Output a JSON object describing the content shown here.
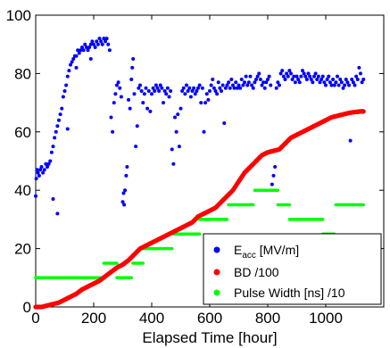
{
  "chart_data": {
    "type": "scatter",
    "xlabel": "Elapsed Time [hour]",
    "ylabel": "",
    "xlim": [
      0,
      1200
    ],
    "ylim": [
      0,
      100
    ],
    "xticks": [
      "0",
      "200",
      "400",
      "600",
      "800",
      "1000"
    ],
    "yticks": [
      "0",
      "20",
      "40",
      "60",
      "80",
      "100"
    ],
    "grid": false,
    "legend_position": "bottom-right",
    "series": [
      {
        "name": "E",
        "name_subscript": "acc",
        "name_suffix": " [MV/m]",
        "color": "#0000ff",
        "points": [
          [
            0,
            38
          ],
          [
            2,
            44
          ],
          [
            5,
            47
          ],
          [
            8,
            46
          ],
          [
            12,
            45
          ],
          [
            16,
            47
          ],
          [
            20,
            48
          ],
          [
            25,
            46
          ],
          [
            30,
            47
          ],
          [
            35,
            49
          ],
          [
            40,
            48
          ],
          [
            45,
            49
          ],
          [
            50,
            50
          ],
          [
            55,
            53
          ],
          [
            60,
            55
          ],
          [
            65,
            58
          ],
          [
            70,
            60
          ],
          [
            75,
            62
          ],
          [
            80,
            64
          ],
          [
            85,
            66
          ],
          [
            90,
            68
          ],
          [
            95,
            72
          ],
          [
            100,
            74
          ],
          [
            105,
            76
          ],
          [
            110,
            79
          ],
          [
            115,
            81
          ],
          [
            120,
            83
          ],
          [
            125,
            84
          ],
          [
            130,
            85
          ],
          [
            135,
            86
          ],
          [
            140,
            86
          ],
          [
            145,
            88
          ],
          [
            150,
            87
          ],
          [
            155,
            88
          ],
          [
            160,
            89
          ],
          [
            165,
            88
          ],
          [
            170,
            90
          ],
          [
            175,
            89
          ],
          [
            180,
            88
          ],
          [
            185,
            89
          ],
          [
            190,
            90
          ],
          [
            195,
            91
          ],
          [
            200,
            90
          ],
          [
            205,
            89
          ],
          [
            210,
            91
          ],
          [
            215,
            90
          ],
          [
            220,
            92
          ],
          [
            225,
            91
          ],
          [
            230,
            90
          ],
          [
            235,
            92
          ],
          [
            240,
            91
          ],
          [
            245,
            92
          ],
          [
            250,
            90
          ],
          [
            255,
            88
          ],
          [
            60,
            37
          ],
          [
            75,
            32
          ],
          [
            110,
            61
          ],
          [
            140,
            82
          ],
          [
            190,
            85
          ],
          [
            260,
            65
          ],
          [
            265,
            60
          ],
          [
            270,
            70
          ],
          [
            275,
            73
          ],
          [
            280,
            76
          ],
          [
            285,
            77
          ],
          [
            290,
            75
          ],
          [
            295,
            72
          ],
          [
            300,
            36
          ],
          [
            303,
            39
          ],
          [
            305,
            35
          ],
          [
            308,
            40
          ],
          [
            312,
            45
          ],
          [
            315,
            48
          ],
          [
            320,
            71
          ],
          [
            325,
            68
          ],
          [
            330,
            78
          ],
          [
            333,
            82
          ],
          [
            336,
            85
          ],
          [
            340,
            73
          ],
          [
            345,
            55
          ],
          [
            350,
            62
          ],
          [
            355,
            75
          ],
          [
            360,
            76
          ],
          [
            365,
            74
          ],
          [
            370,
            70
          ],
          [
            375,
            73
          ],
          [
            380,
            75
          ],
          [
            385,
            68
          ],
          [
            390,
            74
          ],
          [
            395,
            67
          ],
          [
            400,
            73
          ],
          [
            405,
            75
          ],
          [
            410,
            74
          ],
          [
            415,
            76
          ],
          [
            420,
            75
          ],
          [
            425,
            74
          ],
          [
            430,
            76
          ],
          [
            435,
            75
          ],
          [
            440,
            70
          ],
          [
            445,
            74
          ],
          [
            450,
            73
          ],
          [
            455,
            75
          ],
          [
            460,
            72
          ],
          [
            465,
            74
          ],
          [
            470,
            54
          ],
          [
            475,
            49
          ],
          [
            480,
            65
          ],
          [
            485,
            60
          ],
          [
            490,
            66
          ],
          [
            495,
            55
          ],
          [
            500,
            68
          ],
          [
            505,
            74
          ],
          [
            510,
            75
          ],
          [
            515,
            73
          ],
          [
            520,
            76
          ],
          [
            525,
            74
          ],
          [
            530,
            75
          ],
          [
            535,
            72
          ],
          [
            540,
            74
          ],
          [
            545,
            75
          ],
          [
            550,
            73
          ],
          [
            555,
            74
          ],
          [
            560,
            75
          ],
          [
            565,
            76
          ],
          [
            570,
            70
          ],
          [
            575,
            75
          ],
          [
            580,
            60
          ],
          [
            585,
            70
          ],
          [
            590,
            73
          ],
          [
            595,
            71
          ],
          [
            600,
            74
          ],
          [
            605,
            76
          ],
          [
            610,
            78
          ],
          [
            615,
            75
          ],
          [
            620,
            74
          ],
          [
            625,
            73
          ],
          [
            630,
            77
          ],
          [
            635,
            75
          ],
          [
            640,
            74
          ],
          [
            645,
            76
          ],
          [
            650,
            63
          ],
          [
            655,
            75
          ],
          [
            660,
            76
          ],
          [
            665,
            77
          ],
          [
            670,
            75
          ],
          [
            675,
            78
          ],
          [
            680,
            76
          ],
          [
            685,
            75
          ],
          [
            690,
            77
          ],
          [
            695,
            75
          ],
          [
            700,
            76
          ],
          [
            705,
            75
          ],
          [
            710,
            78
          ],
          [
            715,
            76
          ],
          [
            720,
            77
          ],
          [
            725,
            79
          ],
          [
            730,
            76
          ],
          [
            735,
            77
          ],
          [
            740,
            79
          ],
          [
            745,
            76
          ],
          [
            750,
            75
          ],
          [
            755,
            77
          ],
          [
            760,
            78
          ],
          [
            765,
            79
          ],
          [
            770,
            80
          ],
          [
            775,
            78
          ],
          [
            780,
            76
          ],
          [
            785,
            77
          ],
          [
            790,
            75
          ],
          [
            795,
            77
          ],
          [
            800,
            78
          ],
          [
            805,
            79
          ],
          [
            810,
            76
          ],
          [
            815,
            42
          ],
          [
            820,
            45
          ],
          [
            825,
            48
          ],
          [
            830,
            75
          ],
          [
            835,
            77
          ],
          [
            840,
            76
          ],
          [
            845,
            80
          ],
          [
            850,
            81
          ],
          [
            855,
            79
          ],
          [
            860,
            78
          ],
          [
            865,
            80
          ],
          [
            870,
            79
          ],
          [
            875,
            81
          ],
          [
            880,
            80
          ],
          [
            885,
            78
          ],
          [
            890,
            79
          ],
          [
            895,
            77
          ],
          [
            900,
            79
          ],
          [
            905,
            78
          ],
          [
            910,
            77
          ],
          [
            915,
            79
          ],
          [
            920,
            81
          ],
          [
            925,
            80
          ],
          [
            930,
            79
          ],
          [
            935,
            78
          ],
          [
            940,
            80
          ],
          [
            945,
            79
          ],
          [
            950,
            78
          ],
          [
            955,
            77
          ],
          [
            960,
            79
          ],
          [
            965,
            80
          ],
          [
            970,
            78
          ],
          [
            975,
            79
          ],
          [
            980,
            77
          ],
          [
            985,
            78
          ],
          [
            990,
            79
          ],
          [
            995,
            77
          ],
          [
            1000,
            76
          ],
          [
            1005,
            78
          ],
          [
            1010,
            79
          ],
          [
            1015,
            77
          ],
          [
            1020,
            76
          ],
          [
            1025,
            78
          ],
          [
            1030,
            76
          ],
          [
            1035,
            77
          ],
          [
            1040,
            79
          ],
          [
            1045,
            76
          ],
          [
            1050,
            78
          ],
          [
            1055,
            77
          ],
          [
            1060,
            75
          ],
          [
            1065,
            76
          ],
          [
            1070,
            78
          ],
          [
            1075,
            77
          ],
          [
            1080,
            76
          ],
          [
            1085,
            57
          ],
          [
            1090,
            78
          ],
          [
            1095,
            77
          ],
          [
            1100,
            76
          ],
          [
            1105,
            79
          ],
          [
            1110,
            78
          ],
          [
            1115,
            82
          ],
          [
            1120,
            80
          ],
          [
            1125,
            77
          ],
          [
            1130,
            78
          ]
        ]
      },
      {
        "name": "BD /100",
        "color": "#ff0000",
        "points": [
          [
            0,
            0
          ],
          [
            20,
            0
          ],
          [
            40,
            0.5
          ],
          [
            60,
            1
          ],
          [
            80,
            1.5
          ],
          [
            100,
            2.5
          ],
          [
            120,
            3.5
          ],
          [
            140,
            4.5
          ],
          [
            160,
            6
          ],
          [
            180,
            7
          ],
          [
            200,
            8
          ],
          [
            220,
            9
          ],
          [
            240,
            10.5
          ],
          [
            260,
            12
          ],
          [
            280,
            13.5
          ],
          [
            300,
            14.5
          ],
          [
            320,
            16
          ],
          [
            340,
            18
          ],
          [
            360,
            20
          ],
          [
            380,
            21
          ],
          [
            400,
            22
          ],
          [
            420,
            23
          ],
          [
            440,
            24
          ],
          [
            460,
            25
          ],
          [
            480,
            26
          ],
          [
            500,
            27
          ],
          [
            520,
            28
          ],
          [
            540,
            29
          ],
          [
            560,
            31
          ],
          [
            580,
            32
          ],
          [
            600,
            33
          ],
          [
            620,
            34
          ],
          [
            640,
            36
          ],
          [
            660,
            38
          ],
          [
            680,
            40
          ],
          [
            700,
            43
          ],
          [
            720,
            46
          ],
          [
            740,
            48
          ],
          [
            760,
            50
          ],
          [
            780,
            52
          ],
          [
            800,
            53
          ],
          [
            820,
            53.5
          ],
          [
            840,
            54
          ],
          [
            860,
            56
          ],
          [
            880,
            58
          ],
          [
            900,
            59
          ],
          [
            920,
            60
          ],
          [
            940,
            61
          ],
          [
            960,
            62
          ],
          [
            980,
            63
          ],
          [
            1000,
            64
          ],
          [
            1020,
            65
          ],
          [
            1040,
            65.5
          ],
          [
            1060,
            66
          ],
          [
            1080,
            66.5
          ],
          [
            1100,
            66.8
          ],
          [
            1120,
            67
          ],
          [
            1130,
            67
          ]
        ]
      },
      {
        "name": "Pulse Width [ns] /10",
        "color": "#00ff00",
        "segments": [
          [
            [
              0,
              10
            ],
            [
              225,
              10
            ]
          ],
          [
            [
              235,
              15
            ],
            [
              280,
              15
            ]
          ],
          [
            [
              280,
              10
            ],
            [
              330,
              10
            ]
          ],
          [
            [
              335,
              15
            ],
            [
              370,
              15
            ]
          ],
          [
            [
              370,
              20
            ],
            [
              470,
              20
            ]
          ],
          [
            [
              475,
              25
            ],
            [
              565,
              25
            ]
          ],
          [
            [
              565,
              30
            ],
            [
              660,
              30
            ]
          ],
          [
            [
              665,
              35
            ],
            [
              750,
              35
            ]
          ],
          [
            [
              755,
              40
            ],
            [
              835,
              40
            ]
          ],
          [
            [
              835,
              35
            ],
            [
              875,
              35
            ]
          ],
          [
            [
              875,
              30
            ],
            [
              990,
              30
            ]
          ],
          [
            [
              990,
              25
            ],
            [
              1030,
              25
            ]
          ],
          [
            [
              1035,
              35
            ],
            [
              1130,
              35
            ]
          ]
        ]
      }
    ]
  }
}
